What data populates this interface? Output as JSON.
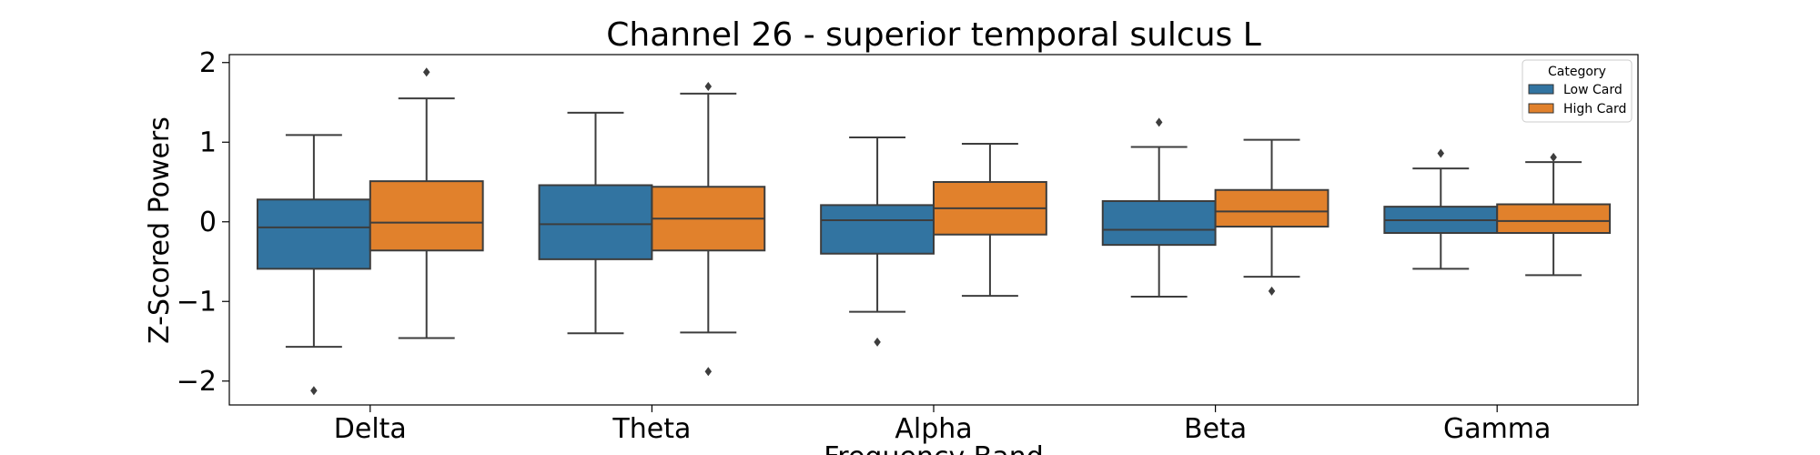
{
  "chart_data": {
    "type": "box",
    "title": "Channel 26 - superior temporal sulcus L",
    "xlabel": "Frequency Band",
    "ylabel": "Z-Scored Powers",
    "categories": [
      "Delta",
      "Theta",
      "Alpha",
      "Beta",
      "Gamma"
    ],
    "ylim": [
      -2.3,
      2.1
    ],
    "yticks": [
      2,
      1,
      0,
      -1,
      -2
    ],
    "ytick_labels": [
      "2",
      "1",
      "0",
      "−1",
      "−2"
    ],
    "grid": false,
    "legend": {
      "title": "Category",
      "position": "top-right"
    },
    "series": [
      {
        "name": "Low Card",
        "color": "#3274a1",
        "boxes": [
          {
            "whisker_low": -1.57,
            "q1": -0.59,
            "median": -0.07,
            "q3": 0.28,
            "whisker_high": 1.09,
            "outliers": [
              -2.12
            ]
          },
          {
            "whisker_low": -1.4,
            "q1": -0.47,
            "median": -0.03,
            "q3": 0.46,
            "whisker_high": 1.37,
            "outliers": []
          },
          {
            "whisker_low": -1.13,
            "q1": -0.4,
            "median": 0.02,
            "q3": 0.21,
            "whisker_high": 1.06,
            "outliers": [
              -1.51
            ]
          },
          {
            "whisker_low": -0.94,
            "q1": -0.29,
            "median": -0.1,
            "q3": 0.26,
            "whisker_high": 0.94,
            "outliers": [
              1.25
            ]
          },
          {
            "whisker_low": -0.59,
            "q1": -0.14,
            "median": 0.02,
            "q3": 0.19,
            "whisker_high": 0.67,
            "outliers": [
              0.86
            ]
          }
        ]
      },
      {
        "name": "High Card",
        "color": "#e1812c",
        "boxes": [
          {
            "whisker_low": -1.46,
            "q1": -0.36,
            "median": -0.01,
            "q3": 0.51,
            "whisker_high": 1.55,
            "outliers": [
              1.88
            ]
          },
          {
            "whisker_low": -1.39,
            "q1": -0.36,
            "median": 0.04,
            "q3": 0.44,
            "whisker_high": 1.61,
            "outliers": [
              1.7,
              -1.88
            ]
          },
          {
            "whisker_low": -0.93,
            "q1": -0.16,
            "median": 0.17,
            "q3": 0.5,
            "whisker_high": 0.98,
            "outliers": []
          },
          {
            "whisker_low": -0.69,
            "q1": -0.06,
            "median": 0.13,
            "q3": 0.4,
            "whisker_high": 1.03,
            "outliers": [
              -0.87
            ]
          },
          {
            "whisker_low": -0.67,
            "q1": -0.14,
            "median": 0.01,
            "q3": 0.22,
            "whisker_high": 0.75,
            "outliers": [
              0.81
            ]
          }
        ]
      }
    ]
  }
}
